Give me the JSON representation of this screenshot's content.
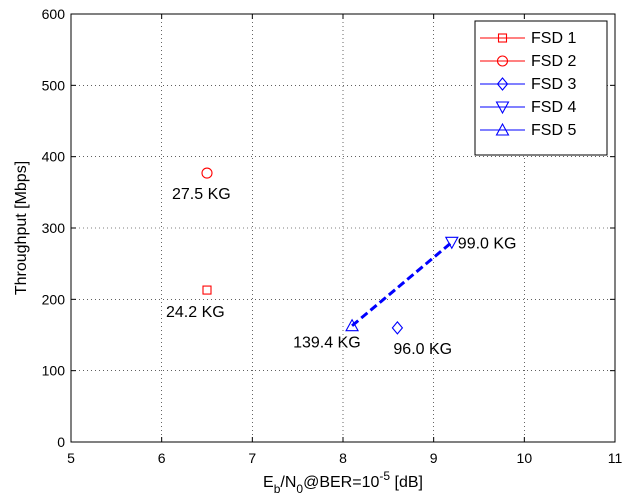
{
  "chart_data": {
    "type": "scatter",
    "xlabel_parts": {
      "e": "E",
      "b": "b",
      "slash_n": "/N",
      "zero": "0",
      "at": "@BER=10",
      "exp": "-5",
      "unit": " [dB]"
    },
    "ylabel": "Throughput [Mbps]",
    "xlim": [
      5,
      11
    ],
    "ylim": [
      0,
      600
    ],
    "xticks": [
      "5",
      "6",
      "7",
      "8",
      "9",
      "10",
      "11"
    ],
    "yticks": [
      "0",
      "100",
      "200",
      "300",
      "400",
      "500",
      "600"
    ],
    "grid": true,
    "legend_position": "top-right",
    "colors": {
      "red": "#ff0000",
      "blue": "#0000ff"
    },
    "series": [
      {
        "name": "FSD 1",
        "marker": "square",
        "color": "#ff0000",
        "points": [
          {
            "x": 6.5,
            "y": 213,
            "label": "24.2 KG"
          }
        ]
      },
      {
        "name": "FSD 2",
        "marker": "circle",
        "color": "#ff0000",
        "points": [
          {
            "x": 6.5,
            "y": 377,
            "label": "27.5 KG"
          }
        ]
      },
      {
        "name": "FSD 3",
        "marker": "diamond",
        "color": "#0000ff",
        "points": [
          {
            "x": 8.6,
            "y": 160,
            "label": "96.0 KG"
          }
        ]
      },
      {
        "name": "FSD 4",
        "marker": "triangle-down",
        "color": "#0000ff",
        "points": [
          {
            "x": 9.2,
            "y": 280,
            "label": "99.0 KG"
          }
        ]
      },
      {
        "name": "FSD 5",
        "marker": "triangle-up",
        "color": "#0000ff",
        "points": [
          {
            "x": 8.1,
            "y": 163,
            "label": "139.4 KG"
          }
        ]
      }
    ],
    "dashed_line": {
      "color": "#0000ff",
      "from": {
        "x": 8.1,
        "y": 163
      },
      "to": {
        "x": 9.2,
        "y": 280
      }
    }
  }
}
